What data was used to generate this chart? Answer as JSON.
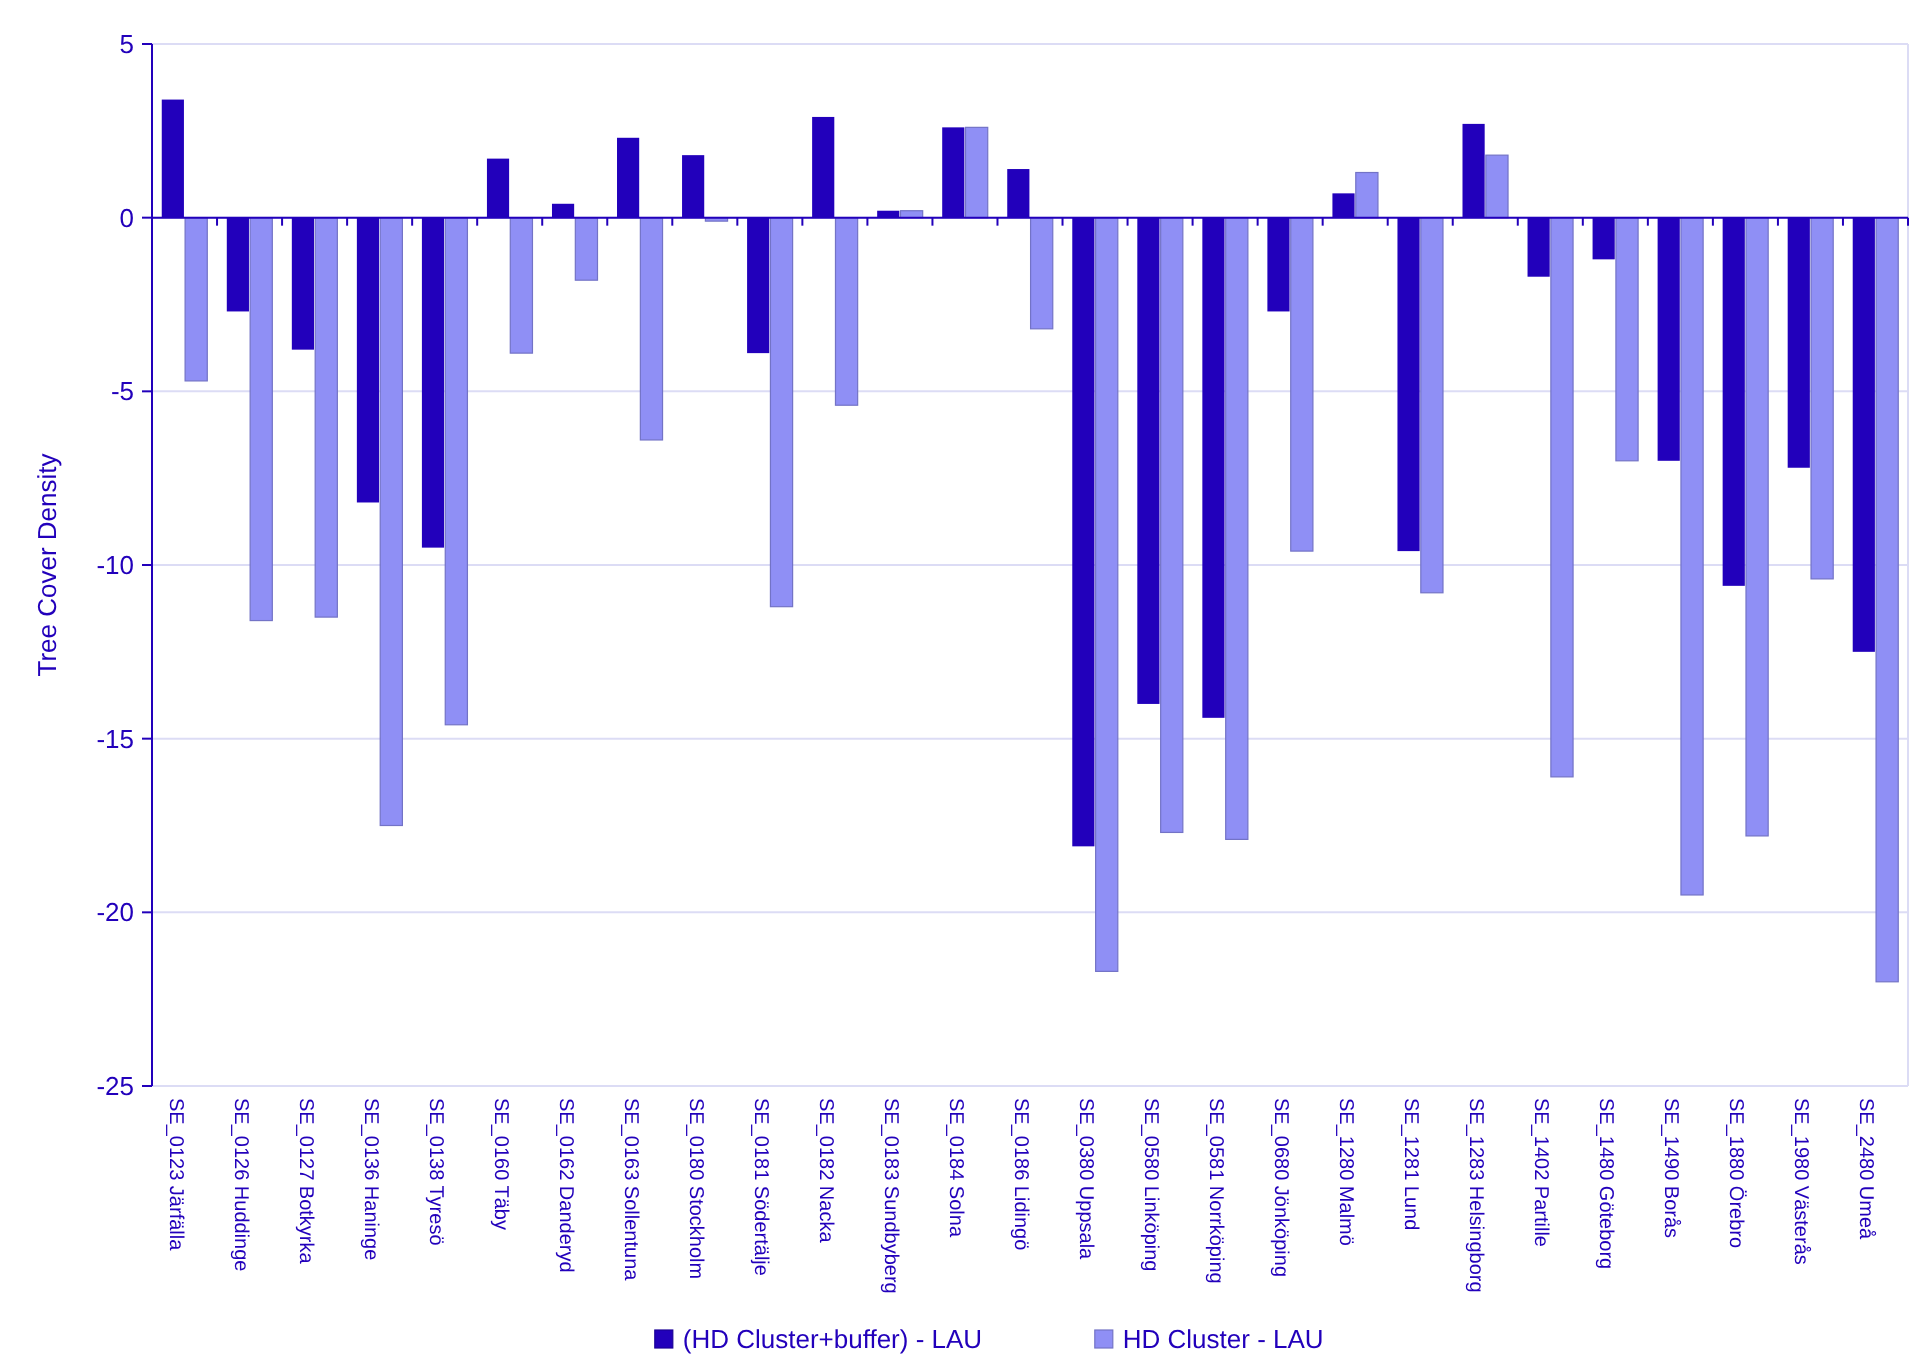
{
  "chart_data": {
    "type": "bar",
    "ylabel": "Tree Cover Density",
    "categories": [
      "SE_0123 Järfälla",
      "SE_0126 Huddinge",
      "SE_0127 Botkyrka",
      "SE_0136 Haninge",
      "SE_0138 Tyresö",
      "SE_0160 Täby",
      "SE_0162 Danderyd",
      "SE_0163 Sollentuna",
      "SE_0180 Stockholm",
      "SE_0181 Södertälje",
      "SE_0182 Nacka",
      "SE_0183 Sundbyberg",
      "SE_0184 Solna",
      "SE_0186 Lidingö",
      "SE_0380 Uppsala",
      "SE_0580 Linköping",
      "SE_0581 Norrköping",
      "SE_0680 Jönköping",
      "SE_1280 Malmö",
      "SE_1281 Lund",
      "SE_1283 Helsingborg",
      "SE_1402 Partille",
      "SE_1480 Göteborg",
      "SE_1490 Borås",
      "SE_1880 Örebro",
      "SE_1980 Västerås",
      "SE_2480 Umeå"
    ],
    "series": [
      {
        "name": "(HD Cluster+buffer) - LAU",
        "color": "#2200bb",
        "values": [
          3.4,
          -2.7,
          -3.8,
          -8.2,
          -9.5,
          1.7,
          0.4,
          2.3,
          1.8,
          -3.9,
          2.9,
          0.2,
          2.6,
          1.4,
          -18.1,
          -14.0,
          -14.4,
          -2.7,
          0.7,
          -9.6,
          2.7,
          -1.7,
          -1.2,
          -7.0,
          -10.6,
          -7.2,
          -12.5
        ]
      },
      {
        "name": "HD Cluster - LAU",
        "color": "#8f8ff5",
        "values": [
          -4.7,
          -11.6,
          -11.5,
          -17.5,
          -14.6,
          -3.9,
          -1.8,
          -6.4,
          -0.1,
          -11.2,
          -5.4,
          0.2,
          2.6,
          -3.2,
          -21.7,
          -17.7,
          -17.9,
          -9.6,
          1.3,
          -10.8,
          1.8,
          -16.1,
          -7.0,
          -19.5,
          -17.8,
          -10.4,
          -22.0
        ]
      }
    ],
    "ylim": [
      -25,
      5
    ],
    "yticks": [
      -25,
      -20,
      -15,
      -10,
      -5,
      0,
      5
    ],
    "grid": "y",
    "legend": "bottom",
    "ref_lines": [
      {
        "axis": "y",
        "value": 0
      }
    ]
  }
}
